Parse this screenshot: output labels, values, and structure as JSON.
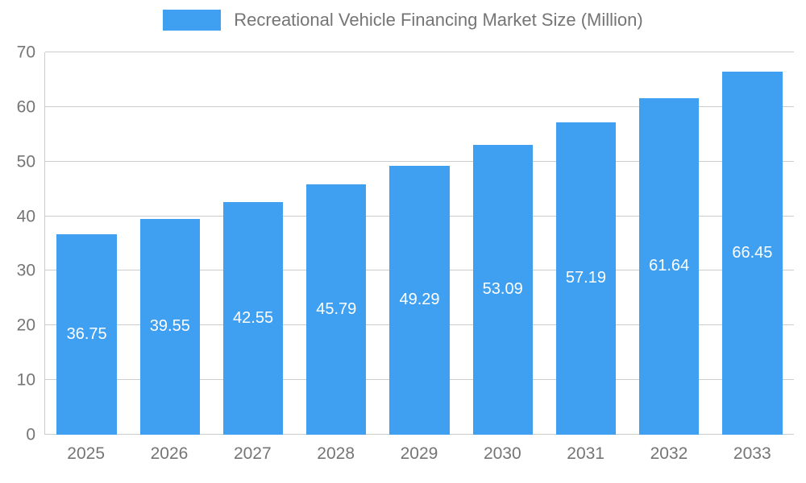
{
  "chart_data": {
    "type": "bar",
    "title": "Recreational Vehicle Financing Market Size (Million)",
    "categories": [
      "2025",
      "2026",
      "2027",
      "2028",
      "2029",
      "2030",
      "2031",
      "2032",
      "2033"
    ],
    "values": [
      36.75,
      39.55,
      42.55,
      45.79,
      49.29,
      53.09,
      57.19,
      61.64,
      66.45
    ],
    "value_labels": [
      "36.75",
      "39.55",
      "42.55",
      "45.79",
      "49.29",
      "53.09",
      "57.19",
      "61.64",
      "66.45"
    ],
    "xlabel": "",
    "ylabel": "",
    "ylim": [
      0,
      70
    ],
    "yticks": [
      0,
      10,
      20,
      30,
      40,
      50,
      60,
      70
    ],
    "grid": true,
    "legend_position": "top",
    "colors": {
      "bar": "#3fa0f2",
      "grid": "#cccccc",
      "axis_text": "#757575",
      "value_label": "#ffffff",
      "background": "#ffffff"
    }
  }
}
